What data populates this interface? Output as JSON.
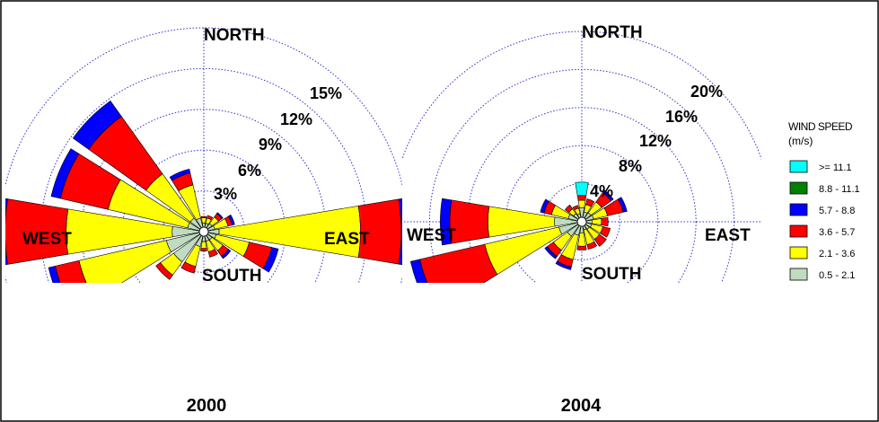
{
  "chart_data": [
    {
      "type": "windrose",
      "title": "2000",
      "directions": [
        "N",
        "NNE",
        "NE",
        "ENE",
        "E",
        "ESE",
        "SE",
        "SSE",
        "S",
        "SSW",
        "SW",
        "WSW",
        "W",
        "WNW",
        "NW",
        "NNW"
      ],
      "axis_labels": {
        "north": "NORTH",
        "south": "SOUTH",
        "east": "EAST",
        "west": "WEST"
      },
      "radial_ticks": [
        3,
        6,
        9,
        12,
        15
      ],
      "radial_tick_labels": [
        "3%",
        "6%",
        "9%",
        "12%",
        "15%"
      ],
      "rmax": 15,
      "frequencies": [
        [
          0.3,
          0.4,
          0.1,
          0.0,
          0.0,
          0.0
        ],
        [
          0.3,
          0.4,
          0.2,
          0.0,
          0.0,
          0.0
        ],
        [
          0.4,
          0.6,
          0.3,
          0.1,
          0.0,
          0.0
        ],
        [
          0.5,
          1.0,
          0.3,
          0.2,
          0.0,
          0.0
        ],
        [
          0.8,
          10.4,
          3.0,
          0.5,
          0.0,
          0.0
        ],
        [
          0.6,
          2.5,
          1.7,
          0.5,
          0.0,
          0.0
        ],
        [
          0.4,
          1.0,
          0.5,
          0.2,
          0.0,
          0.0
        ],
        [
          0.4,
          0.8,
          0.4,
          0.0,
          0.0,
          0.0
        ],
        [
          0.4,
          0.5,
          0.2,
          0.0,
          0.0,
          0.0
        ],
        [
          0.8,
          1.5,
          0.5,
          0.0,
          0.0,
          0.0
        ],
        [
          2.4,
          1.2,
          0.4,
          0.0,
          0.0,
          0.0
        ],
        [
          2.5,
          6.6,
          1.8,
          0.5,
          0.0,
          0.0
        ],
        [
          2.0,
          7.8,
          4.5,
          0.8,
          0.0,
          0.0
        ],
        [
          0.9,
          6.0,
          3.6,
          0.7,
          0.0,
          0.0
        ],
        [
          0.9,
          4.0,
          5.2,
          1.4,
          0.0,
          0.0
        ],
        [
          0.7,
          2.5,
          0.9,
          0.3,
          0.0,
          0.0
        ]
      ]
    },
    {
      "type": "windrose",
      "title": "2004",
      "directions": [
        "N",
        "NNE",
        "NE",
        "ENE",
        "E",
        "ESE",
        "SE",
        "SSE",
        "S",
        "SSW",
        "SW",
        "WSW",
        "W",
        "WNW",
        "NW",
        "NNW"
      ],
      "axis_labels": {
        "north": "NORTH",
        "south": "SOUTH",
        "east": "EAST",
        "west": "WEST"
      },
      "radial_ticks": [
        4,
        8,
        12,
        16,
        20
      ],
      "radial_tick_labels": [
        "4%",
        "8%",
        "12%",
        "16%",
        "20%"
      ],
      "rmax": 20,
      "frequencies": [
        [
          1.0,
          0.8,
          0.5,
          0.0,
          0.0,
          1.4
        ],
        [
          0.6,
          0.8,
          0.6,
          0.0,
          0.0,
          0.0
        ],
        [
          0.7,
          1.4,
          1.2,
          0.3,
          0.0,
          0.0
        ],
        [
          0.8,
          1.5,
          1.7,
          0.4,
          0.0,
          0.0
        ],
        [
          0.6,
          1.0,
          0.7,
          0.0,
          0.0,
          0.0
        ],
        [
          0.6,
          1.2,
          0.8,
          0.0,
          0.0,
          0.0
        ],
        [
          0.5,
          1.3,
          0.9,
          0.0,
          0.0,
          0.0
        ],
        [
          0.4,
          1.6,
          0.5,
          0.0,
          0.0,
          0.0
        ],
        [
          0.7,
          1.4,
          0.4,
          0.0,
          0.0,
          0.0
        ],
        [
          1.0,
          2.6,
          0.8,
          0.3,
          0.0,
          0.0
        ],
        [
          1.4,
          1.8,
          0.8,
          0.3,
          0.0,
          0.0
        ],
        [
          2.0,
          8.0,
          7.0,
          1.0,
          0.0,
          0.0
        ],
        [
          2.4,
          7.0,
          4.0,
          1.0,
          0.0,
          0.0
        ],
        [
          1.0,
          1.8,
          0.8,
          0.4,
          0.0,
          0.0
        ],
        [
          0.6,
          0.6,
          0.5,
          0.0,
          0.0,
          0.0
        ],
        [
          0.4,
          0.6,
          0.3,
          0.0,
          0.0,
          0.0
        ]
      ]
    }
  ],
  "legend": {
    "title_line1": "WIND SPEED",
    "title_line2": "(m/s)",
    "entries": [
      {
        "label": ">= 11.1",
        "color": "#00ffff"
      },
      {
        "label": "8.8 - 11.1",
        "color": "#008000"
      },
      {
        "label": "5.7 - 8.8",
        "color": "#0000ff"
      },
      {
        "label": "3.6 - 5.7",
        "color": "#ff0000"
      },
      {
        "label": "2.1 - 3.6",
        "color": "#ffff00"
      },
      {
        "label": "0.5 - 2.1",
        "color": "#c0dcc0"
      }
    ]
  },
  "bin_colors": [
    "#c0dcc0",
    "#ffff00",
    "#ff0000",
    "#0000ff",
    "#008000",
    "#00ffff"
  ],
  "grid_color": "#3333cc"
}
